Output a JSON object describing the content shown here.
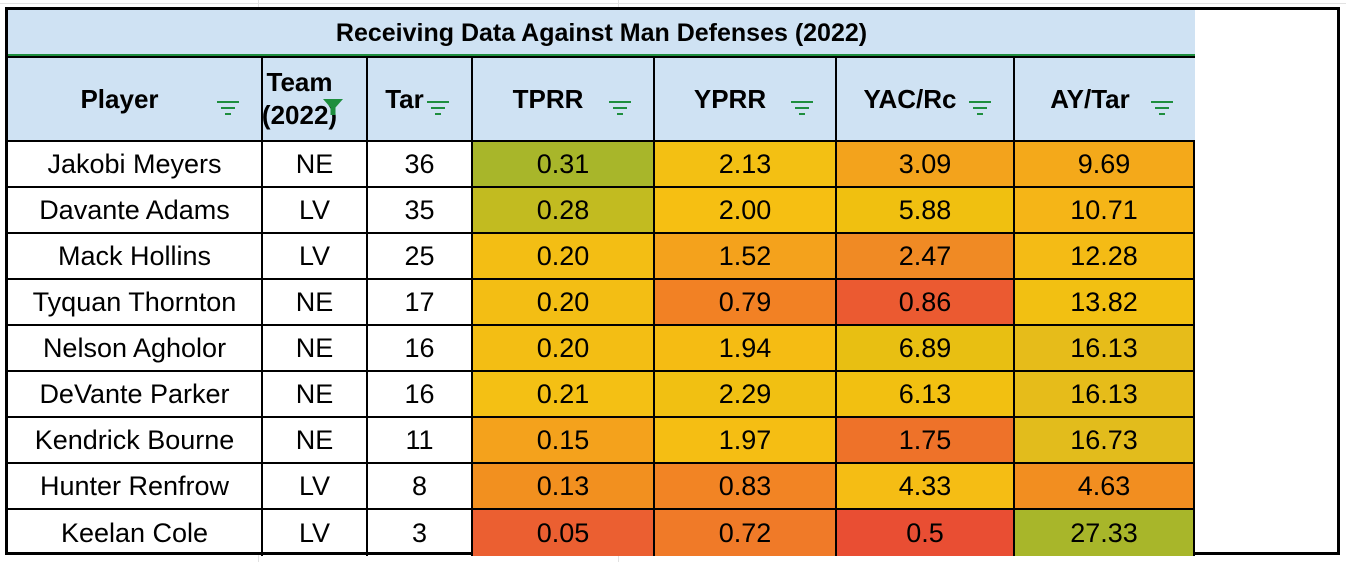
{
  "title": "Receiving Data Against Man Defenses (2022)",
  "headers": [
    "Player",
    "Team\n(2022)",
    "Tar",
    "TPRR",
    "YPRR",
    "YAC/Rc",
    "AY/Tar"
  ],
  "filter_icons": [
    "filter-lines-icon",
    "filter-active-icon",
    "filter-lines-icon",
    "filter-lines-icon",
    "filter-lines-icon",
    "filter-lines-icon",
    "filter-lines-icon"
  ],
  "rows": [
    {
      "player": "Jakobi Meyers",
      "team": "NE",
      "tar": "36",
      "tprr": "0.31",
      "yprr": "2.13",
      "yac": "3.09",
      "ay": "9.69",
      "colors": {
        "tprr": "#a8b62a",
        "yprr": "#f3c013",
        "yac": "#f3a31c",
        "ay": "#f4a91a"
      }
    },
    {
      "player": "Davante Adams",
      "team": "LV",
      "tar": "35",
      "tprr": "0.28",
      "yprr": "2.00",
      "yac": "5.88",
      "ay": "10.71",
      "colors": {
        "tprr": "#c2bb20",
        "yprr": "#f6bf12",
        "yac": "#f0c010",
        "ay": "#f5b517"
      }
    },
    {
      "player": "Mack Hollins",
      "team": "LV",
      "tar": "25",
      "tprr": "0.20",
      "yprr": "1.52",
      "yac": "2.47",
      "ay": "12.28",
      "colors": {
        "tprr": "#f3be14",
        "yprr": "#f4a21c",
        "yac": "#f08a24",
        "ay": "#f4bb15"
      }
    },
    {
      "player": "Tyquan Thornton",
      "team": "NE",
      "tar": "17",
      "tprr": "0.20",
      "yprr": "0.79",
      "yac": "0.86",
      "ay": "13.82",
      "colors": {
        "tprr": "#f3be14",
        "yprr": "#f28124",
        "yac": "#eb5a31",
        "ay": "#f2c012"
      }
    },
    {
      "player": "Nelson Agholor",
      "team": "NE",
      "tar": "16",
      "tprr": "0.20",
      "yprr": "1.94",
      "yac": "6.89",
      "ay": "16.13",
      "colors": {
        "tprr": "#f3be14",
        "yprr": "#f5bc13",
        "yac": "#e8bf12",
        "ay": "#e6bc1a"
      }
    },
    {
      "player": "DeVante Parker",
      "team": "NE",
      "tar": "16",
      "tprr": "0.21",
      "yprr": "2.29",
      "yac": "6.13",
      "ay": "16.13",
      "colors": {
        "tprr": "#f4c014",
        "yprr": "#f1c012",
        "yac": "#f2c011",
        "ay": "#e6bc1a"
      }
    },
    {
      "player": "Kendrick Bourne",
      "team": "NE",
      "tar": "11",
      "tprr": "0.15",
      "yprr": "1.97",
      "yac": "1.75",
      "ay": "16.73",
      "colors": {
        "tprr": "#f4a21c",
        "yprr": "#f5be13",
        "yac": "#ee7229",
        "ay": "#e2bc1c"
      }
    },
    {
      "player": "Hunter Renfrow",
      "team": "LV",
      "tar": "8",
      "tprr": "0.13",
      "yprr": "0.83",
      "yac": "4.33",
      "ay": "4.63",
      "colors": {
        "tprr": "#f2901f",
        "yprr": "#f28424",
        "yac": "#f5bd14",
        "ay": "#f28e20"
      }
    },
    {
      "player": "Keelan Cole",
      "team": "LV",
      "tar": "3",
      "tprr": "0.05",
      "yprr": "0.72",
      "yac": "0.5",
      "ay": "27.33",
      "colors": {
        "tprr": "#eb5f31",
        "yprr": "#f07a28",
        "yac": "#e94e33",
        "ay": "#a8b62a"
      }
    }
  ],
  "colors": {
    "header_bg": "#cfe2f3",
    "border": "#000000",
    "filter_green": "#1e8e3e"
  }
}
